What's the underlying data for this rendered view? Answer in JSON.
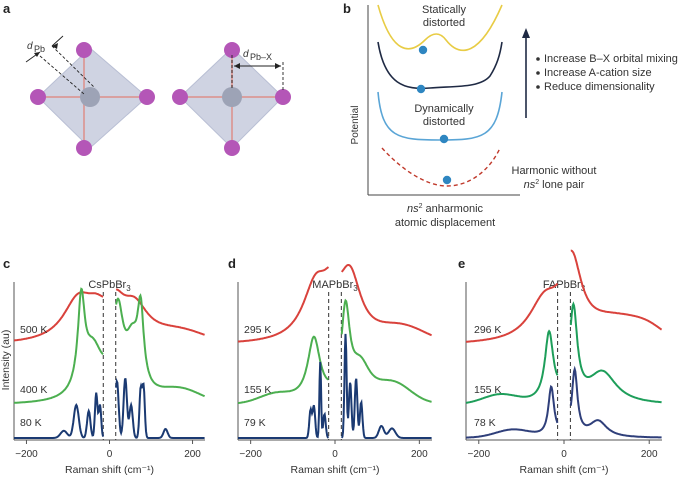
{
  "panel_labels": {
    "a": "a",
    "b": "b",
    "c": "c",
    "d": "d",
    "e": "e"
  },
  "panel_a": {
    "label_left": "d",
    "label_left_sub": "Pb",
    "label_right": "d",
    "label_right_sub": "Pb–X"
  },
  "panel_b": {
    "y_label": "Potential",
    "x_label_line1_ns": "ns",
    "x_label_line1_sup": "2",
    "x_label_line1_rest": " anharmonic",
    "x_label_line2": "atomic displacement",
    "curve_labels": {
      "static_line1": "Statically",
      "static_line2": "distorted",
      "dynamic_line1": "Dynamically",
      "dynamic_line2": "distorted",
      "harmonic_line1": "Harmonic without",
      "harmonic_line2_ns": "ns",
      "harmonic_line2_sup": "2",
      "harmonic_line2_rest": " lone pair"
    },
    "bullets": [
      "Increase B–X orbital mixing",
      "Increase A-cation size",
      "Reduce dimensionality"
    ],
    "colors": {
      "static": "#e8cc45",
      "intermediate": "#1f2a44",
      "dynamic": "#5aa5d6",
      "harmonic": "#c0392b",
      "ball": "#2e86c1"
    }
  },
  "chart_data": [
    {
      "type": "line",
      "panel": "c",
      "title_base": "CsPbBr",
      "title_sub": "3",
      "xlabel": "Raman shift (cm⁻¹)",
      "ylabel": "Intensity (au)",
      "xlim": [
        -230,
        230
      ],
      "xticks": [
        "−200",
        "0",
        "200"
      ],
      "xtick_values": [
        -200,
        0,
        200
      ],
      "dashed_lines_x": [
        -15,
        15
      ],
      "series": [
        {
          "name": "500 K",
          "color": "#d9423c"
        },
        {
          "name": "400 K",
          "color": "#4caf50"
        },
        {
          "name": "80 K",
          "color": "#1b3a72"
        }
      ]
    },
    {
      "type": "line",
      "panel": "d",
      "title_base": "MAPbBr",
      "title_sub": "3",
      "xlabel": "Raman shift (cm⁻¹)",
      "xlim": [
        -230,
        230
      ],
      "xticks": [
        "−200",
        "0",
        "200"
      ],
      "xtick_values": [
        -200,
        0,
        200
      ],
      "dashed_lines_x": [
        -15,
        15
      ],
      "series": [
        {
          "name": "295 K",
          "color": "#d9423c"
        },
        {
          "name": "155 K",
          "color": "#4caf50"
        },
        {
          "name": "79 K",
          "color": "#1b3a72"
        }
      ]
    },
    {
      "type": "line",
      "panel": "e",
      "title_base": "FAPbBr",
      "title_sub": "3",
      "xlabel": "Raman shift (cm⁻¹)",
      "xlim": [
        -230,
        230
      ],
      "xticks": [
        "−200",
        "0",
        "200"
      ],
      "xtick_values": [
        -200,
        0,
        200
      ],
      "dashed_lines_x": [
        -15,
        15
      ],
      "series": [
        {
          "name": "296 K",
          "color": "#d9423c"
        },
        {
          "name": "155 K",
          "color": "#1e9e5a"
        },
        {
          "name": "78 K",
          "color": "#2f3f7a"
        }
      ]
    }
  ]
}
